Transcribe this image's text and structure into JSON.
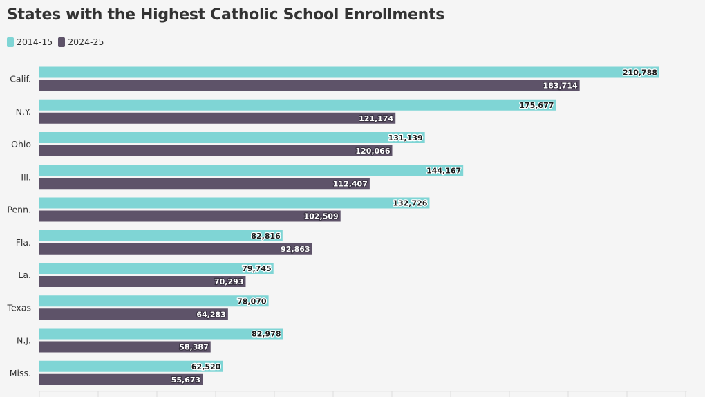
{
  "chart_data": {
    "type": "bar",
    "orientation": "horizontal",
    "title": "States with the Highest Catholic School Enrollments",
    "categories": [
      "Calif.",
      "N.Y.",
      "Ohio",
      "Ill.",
      "Penn.",
      "Fla.",
      "La.",
      "Texas",
      "N.J.",
      "Miss."
    ],
    "series": [
      {
        "name": "2014-15",
        "color": "#7fd5d5",
        "values": [
          210788,
          175677,
          131139,
          144167,
          132726,
          82816,
          79745,
          78070,
          82978,
          62520
        ],
        "labels": [
          "210,788",
          "175,677",
          "131,139",
          "144,167",
          "132,726",
          "82,816",
          "79,745",
          "78,070",
          "82,978",
          "62,520"
        ]
      },
      {
        "name": "2024-25",
        "color": "#5e5369",
        "values": [
          183714,
          121174,
          120066,
          112407,
          102509,
          92863,
          70293,
          64283,
          58387,
          55673
        ],
        "labels": [
          "183,714",
          "121,174",
          "120,066",
          "112,407",
          "102,509",
          "92,863",
          "70,293",
          "64,283",
          "58,387",
          "55,673"
        ]
      }
    ],
    "xlim": [
      0,
      220000
    ],
    "grid": false,
    "legend": "top-left"
  }
}
